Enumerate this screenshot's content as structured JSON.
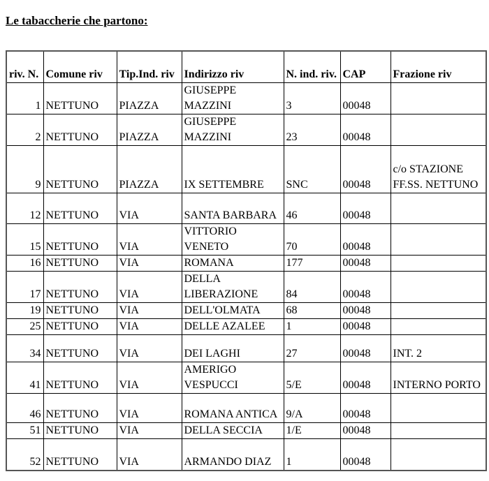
{
  "title": "Le tabaccherie che partono:",
  "table": {
    "headers": [
      "riv. N.",
      "Comune riv",
      "Tip.Ind. riv",
      "Indirizzo riv",
      "N. ind. riv.",
      "CAP",
      "Frazione riv"
    ],
    "rows": [
      [
        "1",
        "NETTUNO",
        "PIAZZA",
        "GIUSEPPE MAZZINI",
        "3",
        "00048",
        ""
      ],
      [
        "2",
        "NETTUNO",
        "PIAZZA",
        "GIUSEPPE MAZZINI",
        "23",
        "00048",
        ""
      ],
      [
        "9",
        "NETTUNO",
        "PIAZZA",
        "IX SETTEMBRE",
        "SNC",
        "00048",
        "c/o STAZIONE FF.SS. NETTUNO"
      ],
      [
        "12",
        "NETTUNO",
        "VIA",
        "SANTA BARBARA",
        "46",
        "00048",
        ""
      ],
      [
        "15",
        "NETTUNO",
        "VIA",
        "VITTORIO VENETO",
        "70",
        "00048",
        ""
      ],
      [
        "16",
        "NETTUNO",
        "VIA",
        "ROMANA",
        "177",
        "00048",
        ""
      ],
      [
        "17",
        "NETTUNO",
        "VIA",
        "DELLA LIBERAZIONE",
        "84",
        "00048",
        ""
      ],
      [
        "19",
        "NETTUNO",
        "VIA",
        "DELL'OLMATA",
        "68",
        "00048",
        ""
      ],
      [
        "25",
        "NETTUNO",
        "VIA",
        "DELLE AZALEE",
        "1",
        "00048",
        ""
      ],
      [
        "34",
        "NETTUNO",
        "VIA",
        "DEI LAGHI",
        "27",
        "00048",
        "INT. 2"
      ],
      [
        "41",
        "NETTUNO",
        "VIA",
        "AMERIGO VESPUCCI",
        "5/E",
        "00048",
        "INTERNO PORTO"
      ],
      [
        "46",
        "NETTUNO",
        "VIA",
        "ROMANA ANTICA",
        "9/A",
        "00048",
        ""
      ],
      [
        "51",
        "NETTUNO",
        "VIA",
        "DELLA SECCIA",
        "1/E",
        "00048",
        ""
      ],
      [
        "52",
        "NETTUNO",
        "VIA",
        "ARMANDO DIAZ",
        "1",
        "00048",
        ""
      ]
    ]
  }
}
